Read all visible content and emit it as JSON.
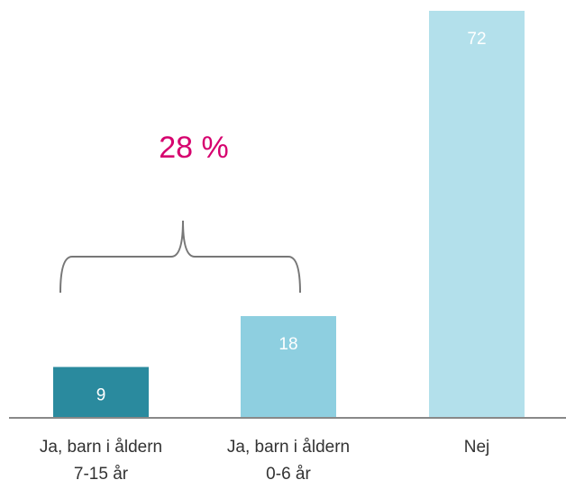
{
  "chart_data": {
    "type": "bar",
    "categories": [
      "Ja, barn i åldern\n7-15 år",
      "Ja, barn i åldern\n0-6 år",
      "Nej"
    ],
    "values": [
      9,
      18,
      72
    ],
    "colors": [
      "#2a8a9e",
      "#8ecfe0",
      "#b3e0eb"
    ],
    "ylim": [
      0,
      72
    ],
    "annotation": "28 %",
    "grid": false
  }
}
